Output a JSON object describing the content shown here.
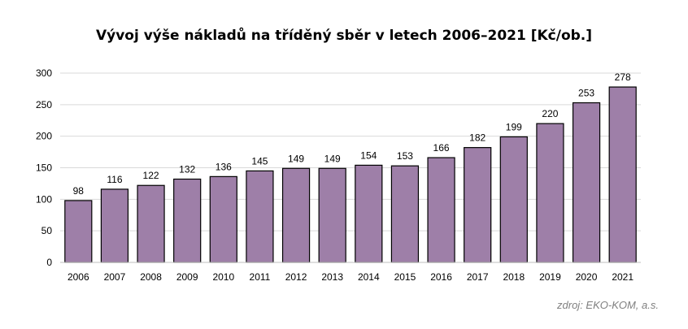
{
  "chart_data": {
    "type": "bar",
    "title": "Vývoj výše nákladů na tříděný sběr v letech 2006–2021 [Kč/ob.]",
    "categories": [
      "2006",
      "2007",
      "2008",
      "2009",
      "2010",
      "2011",
      "2012",
      "2013",
      "2014",
      "2015",
      "2016",
      "2017",
      "2018",
      "2019",
      "2020",
      "2021"
    ],
    "values": [
      98,
      116,
      122,
      132,
      136,
      145,
      149,
      149,
      154,
      153,
      166,
      182,
      199,
      220,
      253,
      278
    ],
    "ylim": [
      0,
      300
    ],
    "yticks": [
      0,
      50,
      100,
      150,
      200,
      250,
      300
    ],
    "grid": true,
    "legend": "none",
    "bar_color": "#9e7fa8",
    "bar_edge_color": "#000000",
    "grid_color": "#d9d9d9"
  },
  "source": "zdroj: EKO-KOM, a.s."
}
